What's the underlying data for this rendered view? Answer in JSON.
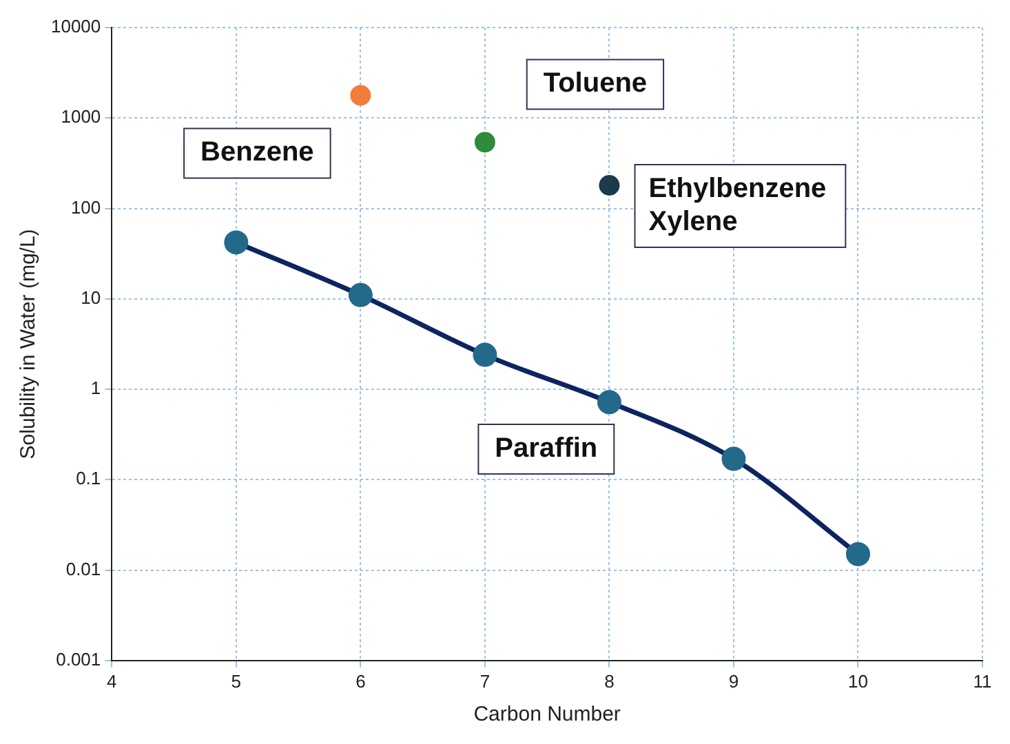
{
  "chart_data": {
    "type": "scatter",
    "xlabel": "Carbon Number",
    "ylabel": "Solubility in Water (mg/L)",
    "xlim": [
      4,
      11
    ],
    "xticks": [
      4,
      5,
      6,
      7,
      8,
      9,
      10,
      11
    ],
    "ylim": [
      0.001,
      10000
    ],
    "yticks": [
      0.001,
      0.01,
      0.1,
      1,
      10,
      100,
      1000,
      10000
    ],
    "log": "y",
    "grid": true,
    "legend": false,
    "marker": "circle",
    "series": [
      {
        "name": "Paraffin",
        "type": "line",
        "color": "#0d2461",
        "x": [
          5,
          6,
          7,
          8,
          9,
          10
        ],
        "values": [
          42,
          11,
          2.4,
          0.72,
          0.17,
          0.015
        ]
      },
      {
        "name": "Benzene",
        "type": "scatter",
        "color": "#f07d3c",
        "x": [
          6
        ],
        "values": [
          1780
        ]
      },
      {
        "name": "Toluene",
        "type": "scatter",
        "color": "#2e8b3a",
        "x": [
          7
        ],
        "values": [
          540
        ]
      },
      {
        "name": "Ethylbenzene\nXylene",
        "type": "scatter",
        "color": "#1b3a4b",
        "x": [
          8
        ],
        "values": [
          180
        ]
      }
    ]
  }
}
